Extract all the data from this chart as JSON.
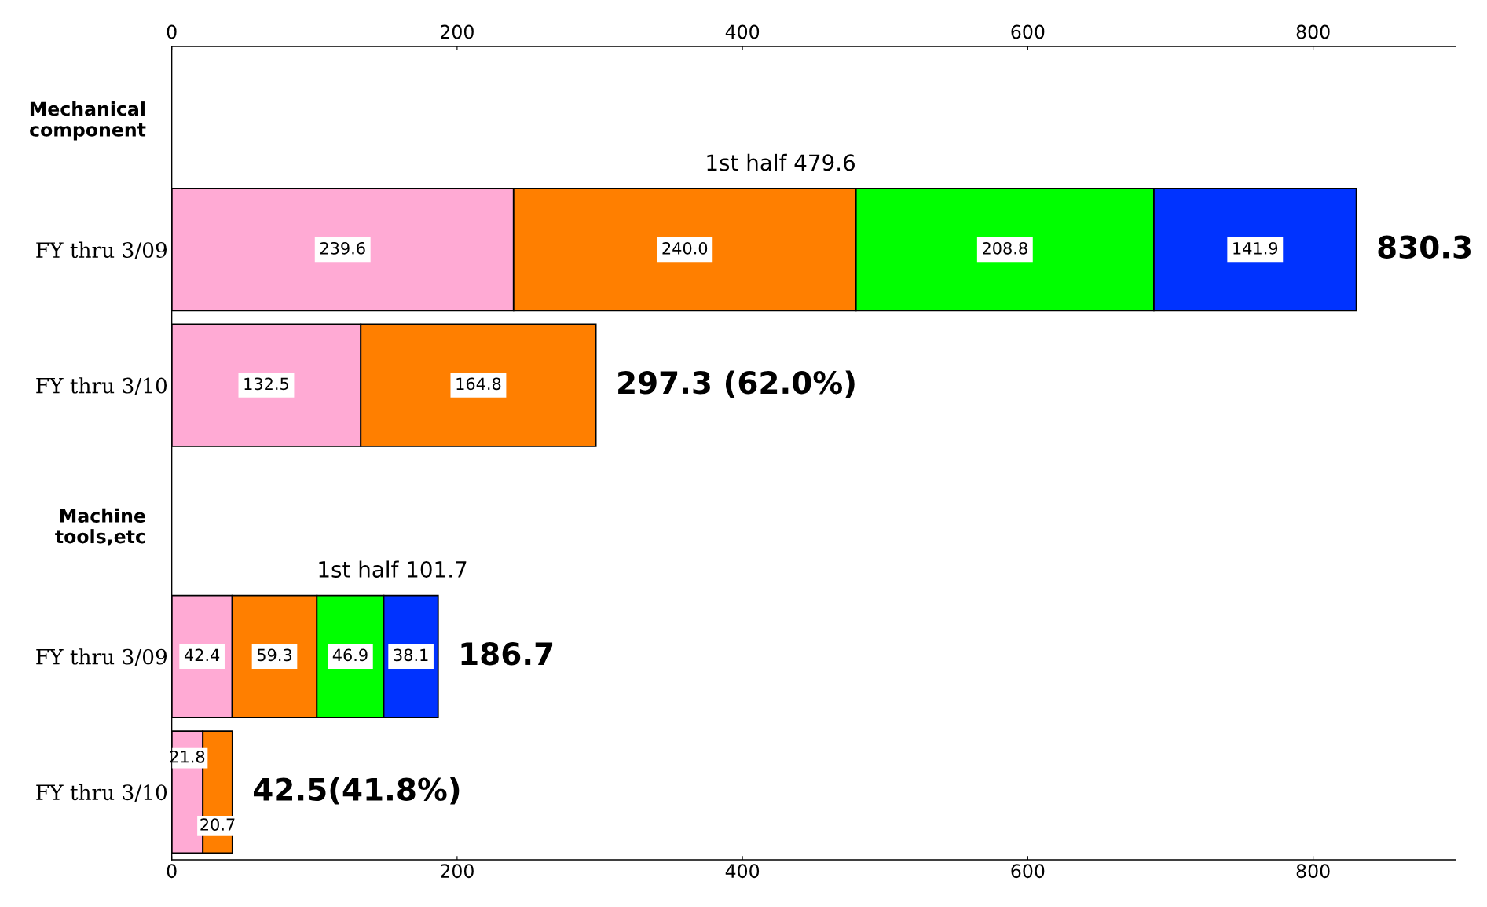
{
  "chart_data": {
    "type": "bar",
    "orientation": "horizontal",
    "stacked": true,
    "categories": [
      null,
      "FY thru 3/09",
      "FY thru 3/10",
      null,
      "FY thru 3/09",
      "FY thru 3/10"
    ],
    "series": [
      {
        "color": "#ffaad4",
        "values": [
          null,
          239.6,
          132.5,
          null,
          42.4,
          21.8
        ],
        "value_labels": [
          null,
          "239.6",
          "132.5",
          null,
          "42.4",
          "21.8"
        ]
      },
      {
        "color": "#ff7f00",
        "values": [
          null,
          240.0,
          164.8,
          null,
          59.3,
          20.7
        ],
        "value_labels": [
          null,
          "240.0",
          "164.8",
          null,
          "59.3",
          "20.7"
        ]
      },
      {
        "color": "#00ff00",
        "values": [
          null,
          208.8,
          null,
          null,
          46.9,
          null
        ],
        "value_labels": [
          null,
          "208.8",
          null,
          null,
          "46.9",
          null
        ]
      },
      {
        "color": "#0033ff",
        "values": [
          null,
          141.9,
          null,
          null,
          38.1,
          null
        ],
        "value_labels": [
          null,
          "141.9",
          null,
          null,
          "38.1",
          null
        ]
      }
    ],
    "totals": [
      null,
      "830.3",
      "297.3 (62.0%)",
      null,
      "186.7",
      "42.5(41.8%)"
    ],
    "annotations": [
      "Mechanical component",
      "1st half 479.6",
      "Machine tools,etc",
      "1st half 101.7"
    ],
    "xlim": [
      0,
      900
    ],
    "xticks": [
      0,
      200,
      400,
      600,
      800
    ],
    "x2lim": [
      0,
      900
    ],
    "x2ticks": [
      0,
      200,
      400,
      600,
      800
    ],
    "grid": false,
    "legend": false
  }
}
